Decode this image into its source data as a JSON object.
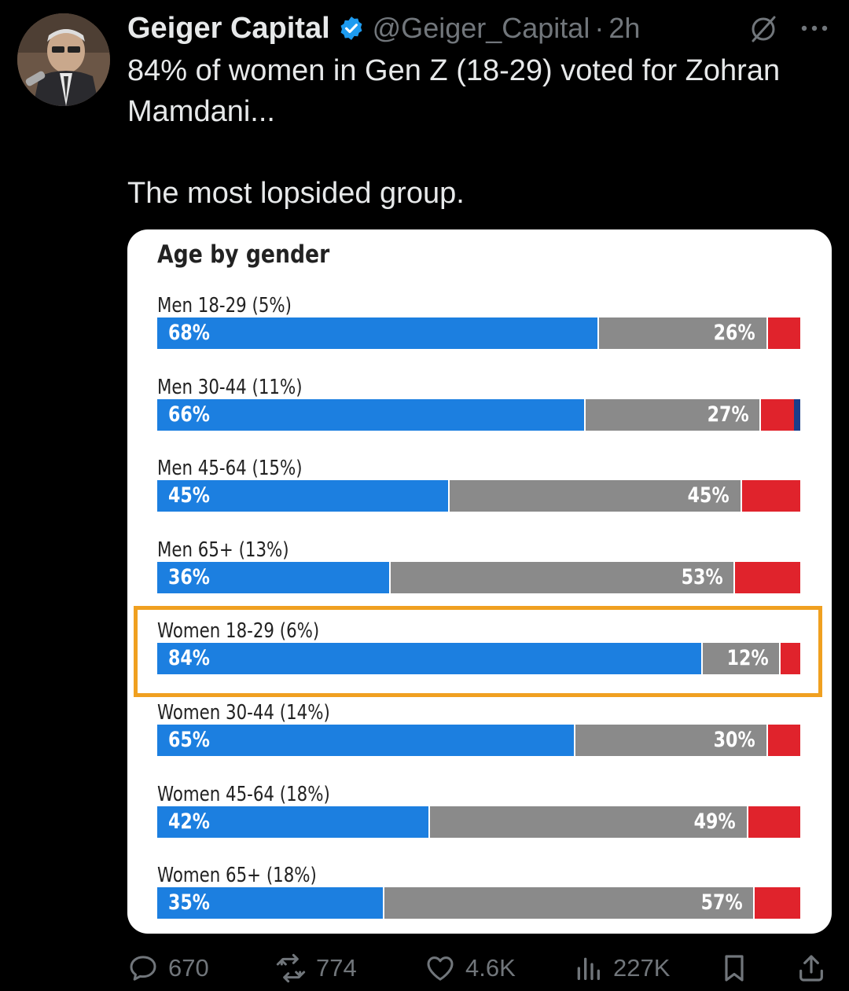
{
  "tweet": {
    "author_name": "Geiger Capital",
    "handle": "@Geiger_Capital",
    "separator": "·",
    "time": "2h",
    "text": "84% of women in Gen Z (18-29) voted for Zohran Mamdani...\n\nThe most lopsided group."
  },
  "icons": {
    "verified": "verified-badge-icon",
    "grok": "grok-icon",
    "more": "more-icon",
    "reply": "reply-icon",
    "retweet": "retweet-icon",
    "like": "heart-icon",
    "views": "views-icon",
    "bookmark": "bookmark-icon",
    "share": "share-icon"
  },
  "colors": {
    "verified": "#1d9bf0",
    "blue": "#1c7fe0",
    "gray": "#8a8a8a",
    "red": "#e0232c",
    "other": "#1a3e8a",
    "highlight": "#f0a020"
  },
  "chart_data": {
    "type": "bar",
    "stacked": true,
    "orientation": "horizontal",
    "title": "Age by gender",
    "categories": [
      "Men 18-29 (5%)",
      "Men 30-44 (11%)",
      "Men 45-64 (15%)",
      "Men 65+ (13%)",
      "Women 18-29 (6%)",
      "Women 30-44 (14%)",
      "Women 45-64 (18%)",
      "Women 65+ (18%)"
    ],
    "series": [
      {
        "color": "#1c7fe0",
        "values": [
          68,
          66,
          45,
          36,
          84,
          65,
          42,
          35
        ],
        "labels": [
          "68%",
          "66%",
          "45%",
          "36%",
          "84%",
          "65%",
          "42%",
          "35%"
        ]
      },
      {
        "color": "#8a8a8a",
        "values": [
          26,
          27,
          45,
          53,
          12,
          30,
          49,
          57
        ],
        "labels": [
          "26%",
          "27%",
          "45%",
          "53%",
          "12%",
          "30%",
          "49%",
          "57%"
        ]
      },
      {
        "color": "#e0232c",
        "values": [
          5,
          5,
          9,
          10,
          3,
          5,
          8,
          7
        ]
      },
      {
        "color": "#1a3e8a",
        "values": [
          0,
          1,
          0,
          0,
          0,
          0,
          0,
          0
        ]
      }
    ],
    "xlim": [
      0,
      100
    ],
    "highlighted_category": "Women 18-29 (6%)"
  },
  "metrics": {
    "replies": "670",
    "retweets": "774",
    "likes": "4.6K",
    "views": "227K"
  }
}
